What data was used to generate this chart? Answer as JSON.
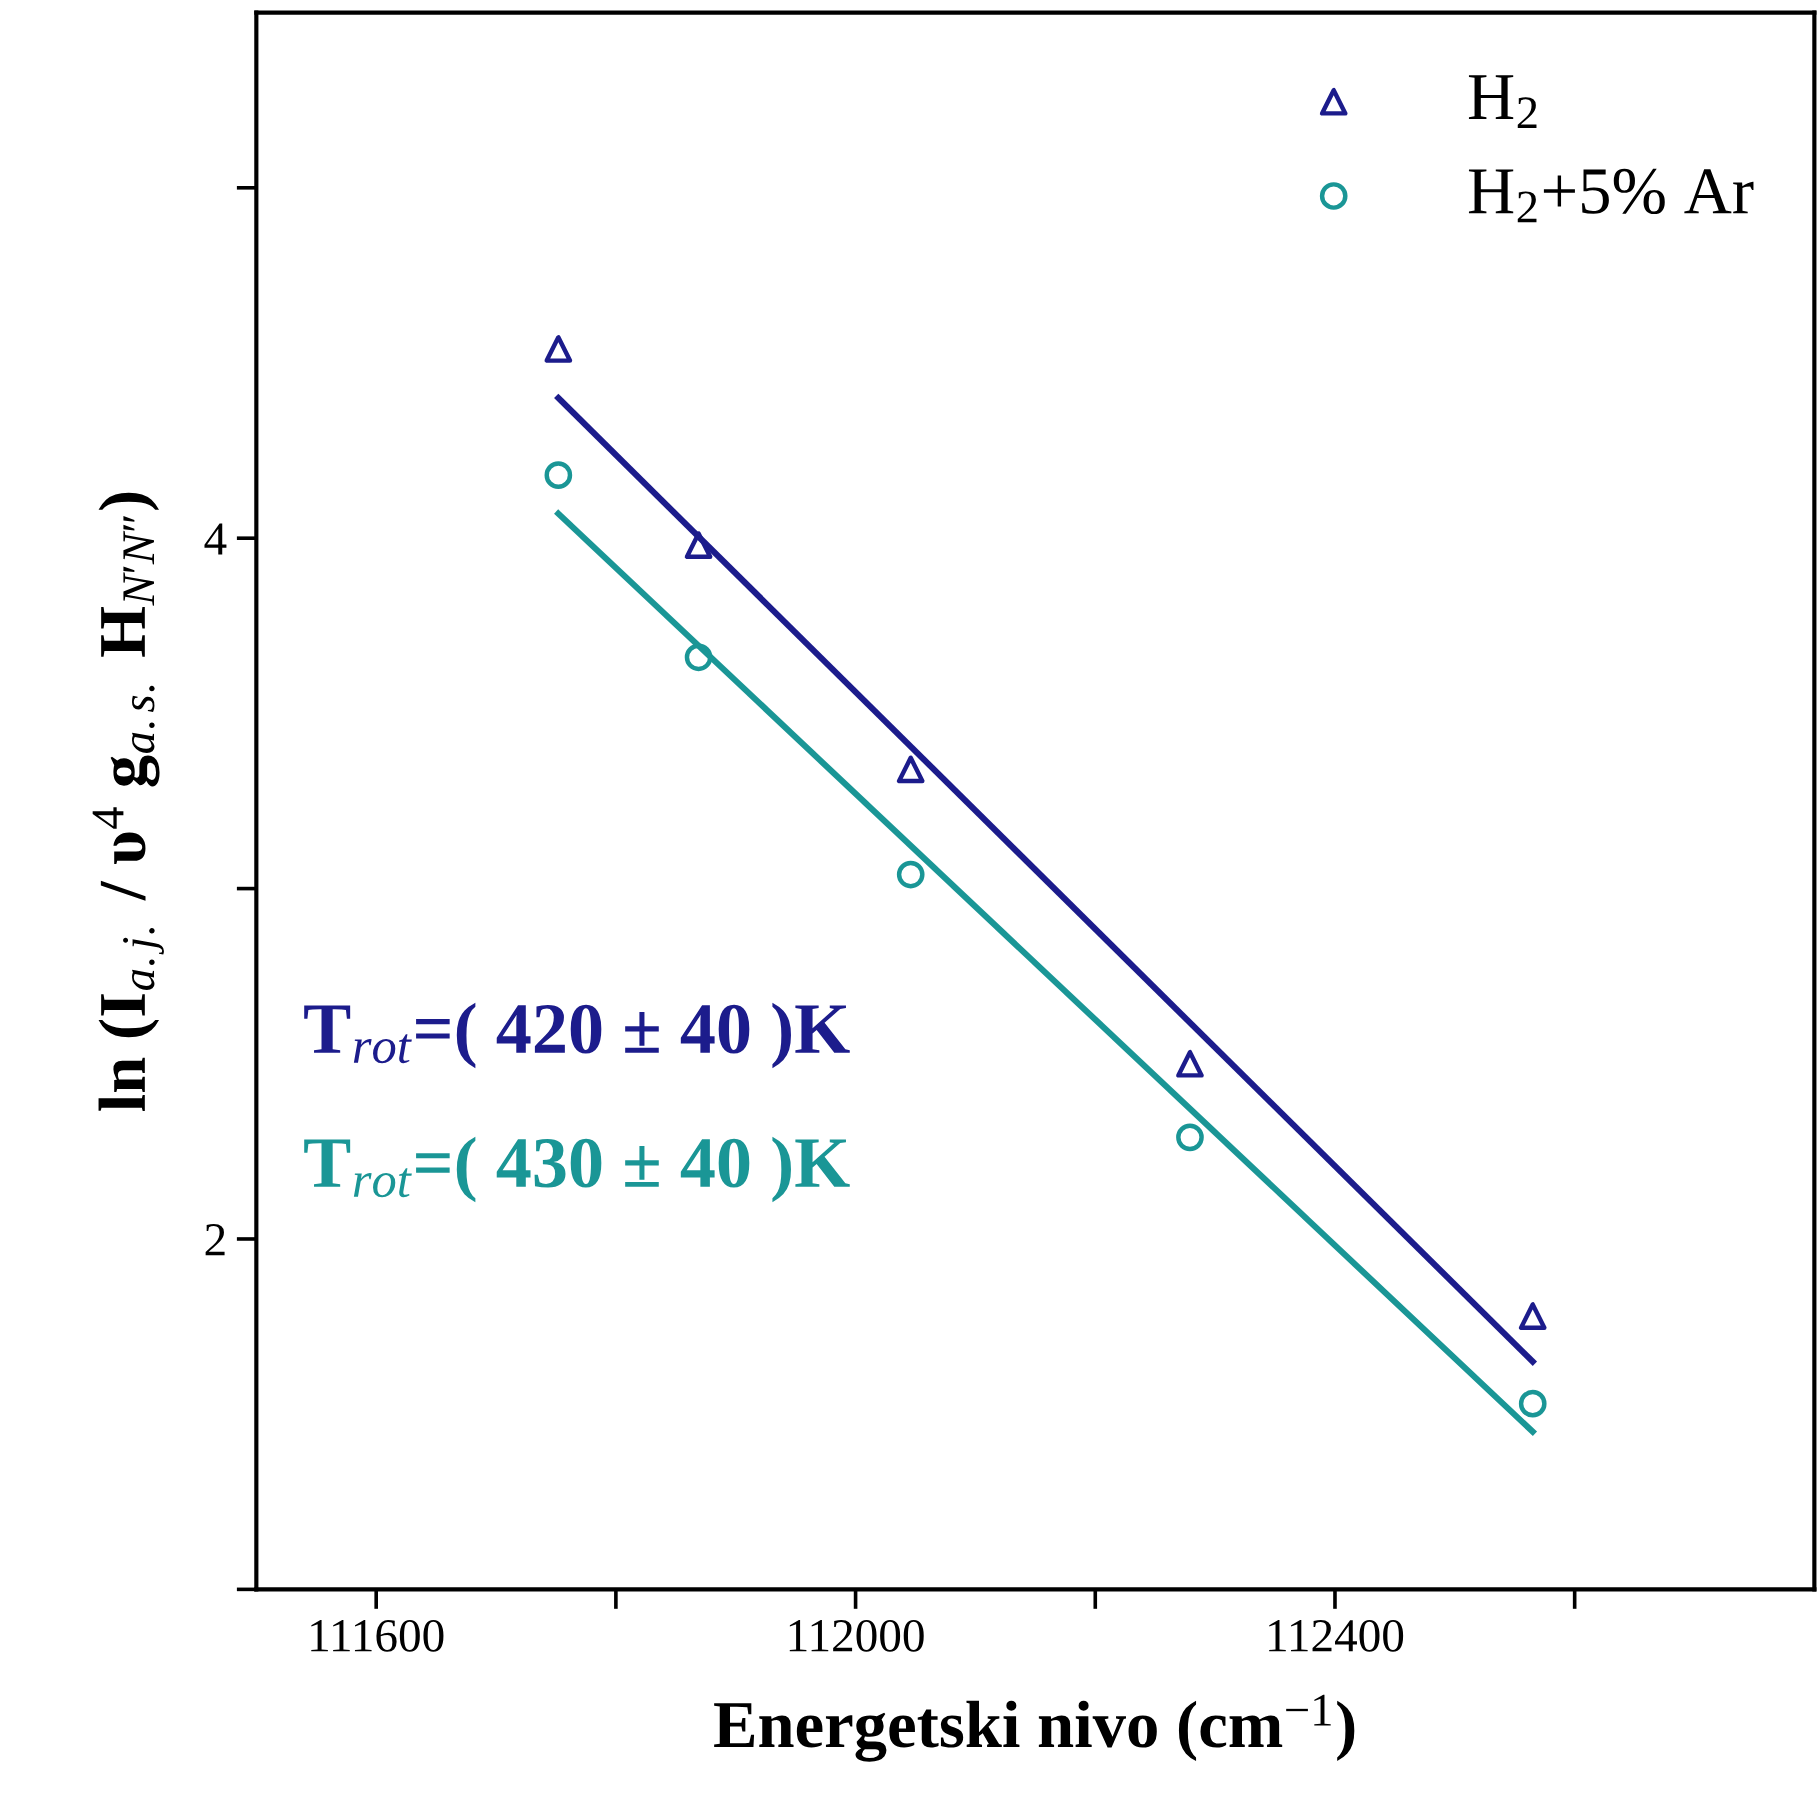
{
  "chart_data": {
    "type": "scatter",
    "xlabel": "Energetski nivo (cm$^{−1}$)",
    "ylabel": "ln (I$_{a.j.}$ / υ$^{4}$ g$_{a.s.}$ H$_{N′N″}$)",
    "series": [
      {
        "name": "H$_{2}$",
        "marker": "triangle",
        "color": "#1c1c8c",
        "x": [
          111752,
          111869,
          112046,
          112279,
          112565
        ],
        "values": [
          4.54,
          3.98,
          3.34,
          2.5,
          1.78
        ]
      },
      {
        "name": "H$_{2}$+5% Ar",
        "marker": "circle",
        "color": "#1a9696",
        "x": [
          111752,
          111869,
          112046,
          112279,
          112565
        ],
        "values": [
          4.18,
          3.66,
          3.04,
          2.29,
          1.53
        ]
      },
      {
        "type": "line",
        "color": "#1c1c8c",
        "x": [
          111752,
          112565
        ],
        "values": [
          4.4,
          1.65
        ]
      },
      {
        "type": "line",
        "color": "#1a9696",
        "x": [
          111752,
          112565
        ],
        "values": [
          4.07,
          1.45
        ]
      }
    ],
    "annotations": [
      "T$_{rot}$=( 420 ± 40 )K",
      "T$_{rot}$=( 430 ± 40 )K"
    ],
    "xlim": [
      111500,
      112800
    ],
    "ylim": [
      1,
      5.5
    ],
    "xticks": [
      111600,
      {
        "value": 111800,
        "label": null
      },
      112000,
      {
        "value": 112200,
        "label": null
      },
      112400,
      {
        "value": 112600,
        "label": null
      }
    ],
    "yticks": [
      {
        "value": 1,
        "label": null
      },
      2,
      {
        "value": 3,
        "label": null
      },
      4,
      {
        "value": 5,
        "label": null
      }
    ],
    "legend": "top right",
    "grid": false
  }
}
